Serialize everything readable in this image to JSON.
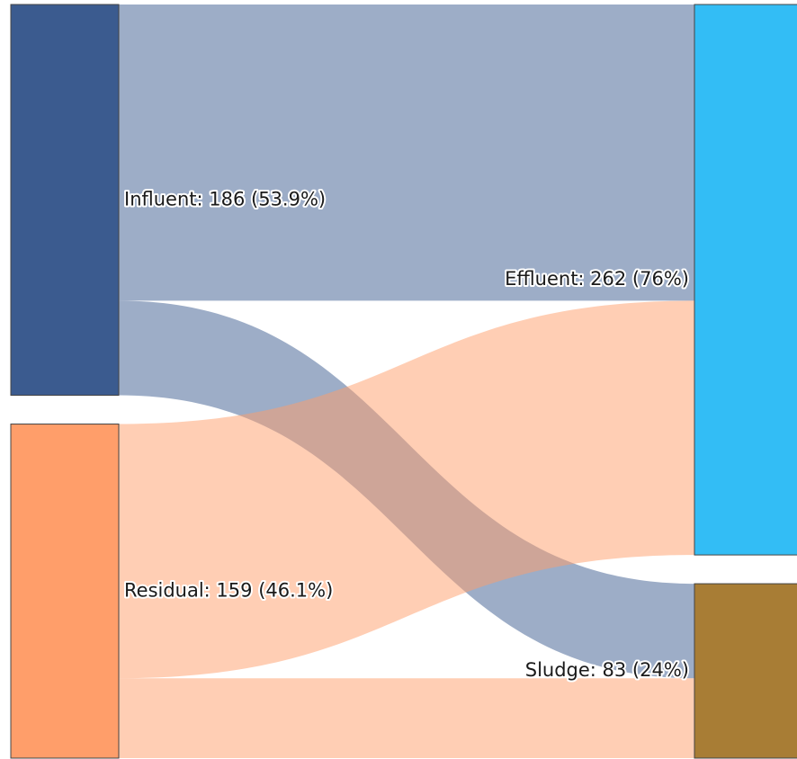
{
  "diagram": {
    "type": "sankey",
    "nodes": [
      {
        "id": "influent",
        "label": "Influent: 186 (53.9%)",
        "name": "Influent",
        "value": 186,
        "percent": "53.9%",
        "column": "left",
        "color": "#3b5b8f"
      },
      {
        "id": "residual",
        "label": "Residual: 159 (46.1%)",
        "name": "Residual",
        "value": 159,
        "percent": "46.1%",
        "column": "left",
        "color": "#ff9e6a"
      },
      {
        "id": "effluent",
        "label": "Effluent: 262 (76%)",
        "name": "Effluent",
        "value": 262,
        "percent": "76%",
        "column": "right",
        "color": "#33bdf5"
      },
      {
        "id": "sludge",
        "label": "Sludge: 83 (24%)",
        "name": "Sludge",
        "value": 83,
        "percent": "24%",
        "column": "right",
        "color": "#a87d35"
      }
    ],
    "links": [
      {
        "source": "influent",
        "target": "effluent",
        "value": 141,
        "color": "#3b5b8f"
      },
      {
        "source": "influent",
        "target": "sludge",
        "value": 45,
        "color": "#3b5b8f"
      },
      {
        "source": "residual",
        "target": "effluent",
        "value": 121,
        "color": "#ff9e6a"
      },
      {
        "source": "residual",
        "target": "sludge",
        "value": 38,
        "color": "#ff9e6a"
      }
    ]
  }
}
